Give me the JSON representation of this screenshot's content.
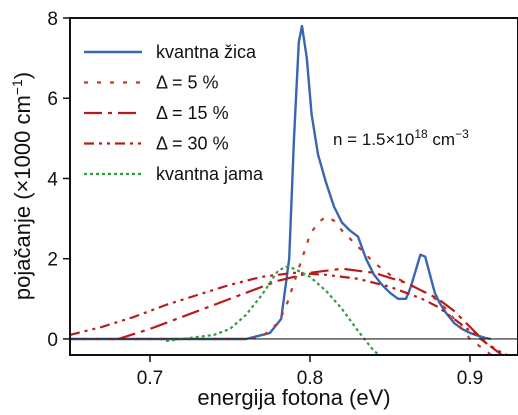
{
  "chart_data": {
    "type": "line",
    "xlabel": "energija fotona (eV)",
    "ylabel": "pojačanje (×1000 cm",
    "ylabel_sup": "−1",
    "ylabel_end": ")",
    "xlim": [
      0.65,
      0.93
    ],
    "ylim": [
      -0.4,
      8
    ],
    "xticks": [
      0.7,
      0.8,
      0.9
    ],
    "xtick_labels": [
      "0.7",
      "0.8",
      "0.9"
    ],
    "yticks": [
      0,
      2,
      4,
      6,
      8
    ],
    "ytick_labels": [
      "0",
      "2",
      "4",
      "6",
      "8"
    ],
    "zero_line": true,
    "grid": false,
    "legend_position": "top-left",
    "annotation": {
      "text_main": "n = 1.5×10",
      "text_sup1": "18",
      "text_mid": " cm",
      "text_sup2": "−3"
    },
    "series": [
      {
        "name": "kvantna žica",
        "color": "#3a66b0",
        "dash": "solid",
        "x": [
          0.65,
          0.76,
          0.775,
          0.782,
          0.787,
          0.79,
          0.793,
          0.795,
          0.798,
          0.801,
          0.805,
          0.81,
          0.815,
          0.82,
          0.825,
          0.83,
          0.835,
          0.84,
          0.845,
          0.85,
          0.855,
          0.86,
          0.863,
          0.866,
          0.869,
          0.872,
          0.875,
          0.878,
          0.881,
          0.885,
          0.89,
          0.895,
          0.9,
          0.905,
          0.91,
          0.913
        ],
        "y": [
          0,
          0,
          0.15,
          0.5,
          2.0,
          5.0,
          7.4,
          7.8,
          7.0,
          5.6,
          4.6,
          3.9,
          3.3,
          2.9,
          2.7,
          2.55,
          2.0,
          1.6,
          1.35,
          1.15,
          1.0,
          1.0,
          1.3,
          1.7,
          2.1,
          2.05,
          1.6,
          1.15,
          0.9,
          0.65,
          0.4,
          0.25,
          0.15,
          0.08,
          0.02,
          0
        ]
      },
      {
        "name": "Δ = 5 %",
        "color": "#c0392b",
        "dash": "4,9",
        "x": [
          0.65,
          0.76,
          0.77,
          0.78,
          0.785,
          0.79,
          0.795,
          0.8,
          0.805,
          0.81,
          0.815,
          0.82,
          0.83,
          0.84,
          0.85,
          0.86,
          0.87,
          0.875,
          0.88,
          0.885,
          0.89,
          0.895,
          0.9,
          0.905,
          0.91,
          0.915
        ],
        "y": [
          0,
          0,
          0.05,
          0.4,
          0.8,
          1.4,
          2.0,
          2.6,
          2.9,
          3.05,
          2.95,
          2.7,
          2.3,
          1.9,
          1.6,
          1.4,
          1.2,
          1.1,
          0.95,
          0.75,
          0.5,
          0.25,
          0.0,
          -0.15,
          -0.3,
          -0.45
        ]
      },
      {
        "name": "Δ = 15 %",
        "color": "#b71c1c",
        "dash": "18,6,4,6",
        "x": [
          0.68,
          0.7,
          0.72,
          0.74,
          0.76,
          0.78,
          0.8,
          0.82,
          0.84,
          0.86,
          0.88,
          0.89,
          0.9,
          0.91,
          0.92,
          0.93
        ],
        "y": [
          0.0,
          0.25,
          0.55,
          0.85,
          1.15,
          1.45,
          1.65,
          1.75,
          1.65,
          1.4,
          1.0,
          0.7,
          0.3,
          -0.1,
          -0.4,
          -0.6
        ]
      },
      {
        "name": "Δ = 30 %",
        "color": "#b71c1c",
        "dash": "10,5,3,5,3,5",
        "x": [
          0.65,
          0.67,
          0.69,
          0.71,
          0.73,
          0.75,
          0.77,
          0.79,
          0.81,
          0.83,
          0.85,
          0.87,
          0.88,
          0.89,
          0.9,
          0.91,
          0.92,
          0.93
        ],
        "y": [
          0.1,
          0.3,
          0.55,
          0.85,
          1.1,
          1.35,
          1.55,
          1.65,
          1.6,
          1.5,
          1.3,
          1.0,
          0.8,
          0.5,
          0.2,
          -0.1,
          -0.35,
          -0.5
        ]
      },
      {
        "name": "kvantna jama",
        "color": "#2e9e3e",
        "dash": "3,3",
        "x": [
          0.71,
          0.72,
          0.73,
          0.74,
          0.75,
          0.76,
          0.77,
          0.78,
          0.785,
          0.79,
          0.8,
          0.81,
          0.82,
          0.83,
          0.84,
          0.85
        ],
        "y": [
          -0.05,
          0.0,
          0.05,
          0.1,
          0.25,
          0.6,
          1.1,
          1.7,
          1.8,
          1.75,
          1.55,
          1.2,
          0.75,
          0.2,
          -0.3,
          -0.6
        ]
      }
    ]
  }
}
